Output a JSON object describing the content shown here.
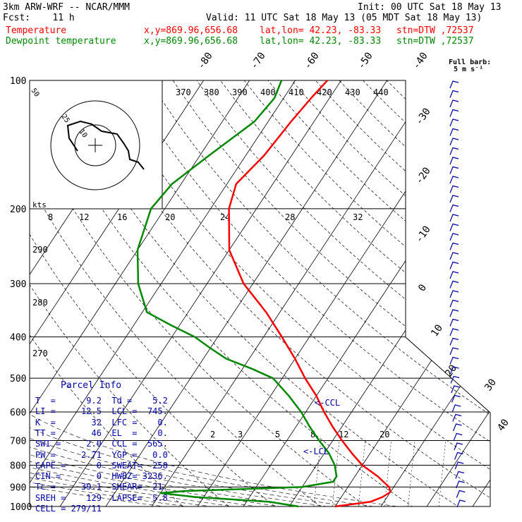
{
  "header": {
    "model": "3km ARW-WRF -- NCAR/MMM",
    "init": "Init: 00 UTC Sat 18 May 13",
    "fcst": "Fcst:    11 h",
    "valid": "Valid: 11 UTC Sat 18 May 13 (05 MDT Sat 18 May 13)",
    "temp_line": {
      "label": "Temperature",
      "xy": "x,y=869.96,656.68",
      "latlon": "lat,lon= 42.23, -83.33",
      "stn": "stn=DTW ,72537"
    },
    "dew_line": {
      "label": "Dewpoint temperature",
      "xy": "x,y=869.96,656.68",
      "latlon": "lat,lon= 42.23, -83.33",
      "stn": "stn=DTW ,72537"
    },
    "full_barb": "Full barb:",
    "barb_unit": "5 m s⁻¹"
  },
  "colors": {
    "temperature": "#ff0000",
    "dewpoint": "#008800",
    "parcel": "#0000aa",
    "grid": "#000000"
  },
  "parcel_info": {
    "title": "Parcel Info",
    "rows": [
      [
        "T  =",
        "9.2",
        "Td =",
        "5.2"
      ],
      [
        "LI =",
        "12.5",
        "LCL =",
        "745."
      ],
      [
        "K  =",
        "32",
        "LFC =",
        "0."
      ],
      [
        "TT =",
        "46",
        "EL  =",
        "0."
      ],
      [
        "SWI =",
        "2.0",
        "CCL =",
        "565."
      ],
      [
        "PW =",
        "2.71",
        "YGP =",
        "0.0"
      ],
      [
        "CAPE =",
        "0",
        "SWEAT=",
        "258"
      ],
      [
        "CIN =",
        "0",
        "HWBZ=",
        "3236."
      ],
      [
        "Tc =",
        "39.1",
        "SHEAR=",
        "21."
      ],
      [
        "SREH =",
        "129",
        "LAPSE=",
        "5.8"
      ],
      [
        "CELL =",
        "279/11",
        "",
        ""
      ]
    ]
  },
  "labels": {
    "ccl": "<-CCL",
    "lcl": "<-LCL",
    "kts": "kts"
  },
  "chart_data": {
    "type": "line",
    "y_axis": "pressure (hPa)",
    "pressure_ticks": [
      100,
      200,
      300,
      400,
      500,
      600,
      700,
      800,
      900,
      1000
    ],
    "isotherm_labels": [
      "-80",
      "-70",
      "-60",
      "-50",
      "-40",
      "-30",
      "-20",
      "-10",
      "0",
      "10",
      "20",
      "30",
      "40"
    ],
    "theta_labels": [
      "370",
      "380",
      "390",
      "400",
      "410",
      "420",
      "430",
      "440"
    ],
    "theta_e_labels_left": [
      "290",
      "280",
      "270"
    ],
    "mixing_ratio_labels": [
      "2",
      "3",
      "5",
      "8",
      "12",
      "20"
    ],
    "hodograph_speed_ticks": [
      "8",
      "12",
      "16",
      "20",
      "24",
      "28",
      "32"
    ],
    "hodograph_ring_labels": [
      "10",
      "25",
      "50"
    ],
    "series": [
      {
        "name": "Temperature",
        "pressure": [
          1000,
          975,
          950,
          925,
          900,
          875,
          850,
          800,
          750,
          700,
          650,
          600,
          550,
          500,
          450,
          400,
          350,
          300,
          250,
          200,
          175,
          150,
          125,
          110,
          100
        ],
        "temp": [
          10,
          17,
          19,
          20,
          19,
          17,
          15,
          10,
          6,
          2,
          -2,
          -6,
          -10,
          -15,
          -20,
          -26,
          -33,
          -42,
          -50,
          -56,
          -58,
          -56,
          -55,
          -54,
          -53
        ]
      },
      {
        "name": "Dewpoint temperature",
        "pressure": [
          1000,
          975,
          950,
          930,
          920,
          900,
          875,
          850,
          800,
          750,
          700,
          650,
          600,
          550,
          500,
          475,
          450,
          425,
          400,
          375,
          350,
          300,
          250,
          200,
          175,
          150,
          125,
          110,
          100
        ],
        "temp": [
          2,
          -5,
          -22,
          -30,
          -25,
          0,
          6,
          6,
          4,
          1,
          -3,
          -7,
          -11,
          -16,
          -22,
          -28,
          -35,
          -40,
          -45,
          -52,
          -59,
          -65,
          -70,
          -73,
          -72,
          -68,
          -63,
          -62,
          -63
        ]
      }
    ]
  }
}
